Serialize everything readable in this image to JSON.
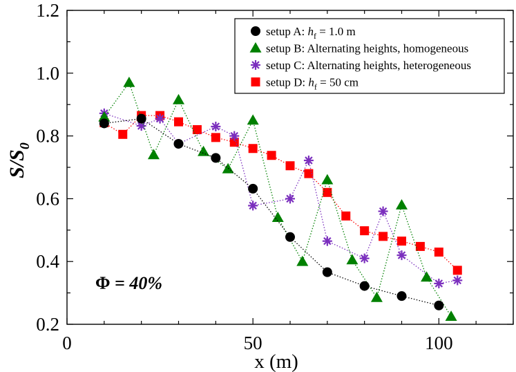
{
  "chart_data": {
    "type": "scatter",
    "title": "",
    "xlabel": "x (m)",
    "ylabel": "S/S",
    "ylabel_sub": "0",
    "xlim": [
      0,
      120
    ],
    "ylim": [
      0.2,
      1.2
    ],
    "x_ticks": [
      0,
      50,
      100
    ],
    "x_tick_labels": [
      "0",
      "50",
      "100"
    ],
    "y_ticks": [
      0.2,
      0.4,
      0.6,
      0.8,
      1.0,
      1.2
    ],
    "y_tick_labels": [
      "0.2",
      "0.4",
      "0.6",
      "0.8",
      "1.0",
      "1.2"
    ],
    "grid": false,
    "legend_position": "top-right",
    "annotation": {
      "symbol": "Φ",
      "equals": " = ",
      "value": "40%"
    },
    "series": [
      {
        "name": "setup A",
        "legend_prefix": "setup A: ",
        "legend_var": "h",
        "legend_sub": "f",
        "legend_suffix": " = 1.0 m",
        "marker": "circle",
        "color": "#000000",
        "x": [
          10,
          20,
          30,
          40,
          50,
          60,
          70,
          80,
          90,
          100
        ],
        "y": [
          0.84,
          0.855,
          0.775,
          0.73,
          0.632,
          0.478,
          0.366,
          0.322,
          0.29,
          0.26
        ]
      },
      {
        "name": "setup B",
        "legend_prefix": "setup B: Alternating heights, homogeneous",
        "marker": "triangle",
        "color": "#008000",
        "x": [
          10,
          16.7,
          23.3,
          30,
          36.7,
          43.3,
          50,
          56.7,
          63.3,
          70,
          76.7,
          83.3,
          90,
          96.7,
          103.3
        ],
        "y": [
          0.86,
          0.97,
          0.74,
          0.915,
          0.75,
          0.695,
          0.85,
          0.54,
          0.4,
          0.66,
          0.405,
          0.285,
          0.58,
          0.35,
          0.225
        ]
      },
      {
        "name": "setup C",
        "legend_prefix": "setup C: Alternating heights, heterogeneous",
        "marker": "asterisk",
        "color": "#7b2fbe",
        "x": [
          10,
          20,
          25,
          30,
          40,
          45,
          50,
          60,
          65,
          70,
          80,
          85,
          90,
          100,
          105
        ],
        "y": [
          0.872,
          0.832,
          0.855,
          0.775,
          0.83,
          0.8,
          0.578,
          0.6,
          0.722,
          0.465,
          0.41,
          0.56,
          0.42,
          0.33,
          0.34
        ]
      },
      {
        "name": "setup D",
        "legend_prefix": "setup D: ",
        "legend_var": "h",
        "legend_sub": "f",
        "legend_suffix": " = 50 cm",
        "marker": "square",
        "color": "#ff0000",
        "x": [
          10,
          15,
          20,
          25,
          30,
          35,
          40,
          45,
          50,
          55,
          60,
          65,
          70,
          75,
          80,
          85,
          90,
          95,
          100,
          105
        ],
        "y": [
          0.842,
          0.805,
          0.865,
          0.865,
          0.845,
          0.82,
          0.795,
          0.78,
          0.76,
          0.738,
          0.705,
          0.68,
          0.62,
          0.545,
          0.498,
          0.48,
          0.465,
          0.448,
          0.43,
          0.372
        ]
      }
    ]
  }
}
